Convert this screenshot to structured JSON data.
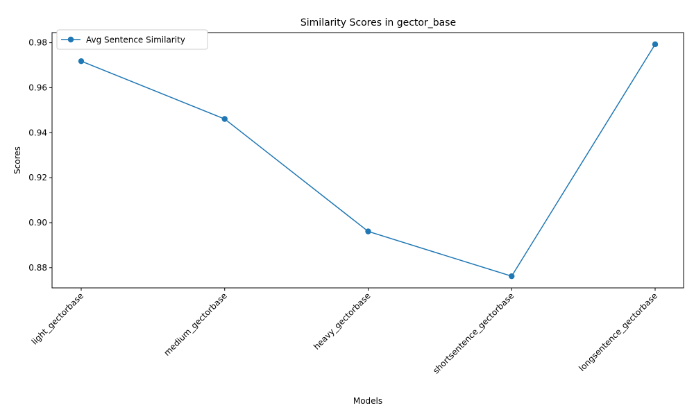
{
  "chart_data": {
    "type": "line",
    "title": "Similarity Scores in gector_base",
    "xlabel": "Models",
    "ylabel": "Scores",
    "categories": [
      "light_gectorbase",
      "medium_gectorbase",
      "heavy_gectorbase",
      "shortsentence_gectorbase",
      "longsentence_gectorbase"
    ],
    "series": [
      {
        "name": "Avg Sentence Similarity",
        "values": [
          0.9718,
          0.9461,
          0.8961,
          0.8762,
          0.9793
        ],
        "color": "#1f77b4",
        "marker": "circle"
      }
    ],
    "ylim": [
      0.871,
      0.9845
    ],
    "yticks": [
      0.88,
      0.9,
      0.92,
      0.94,
      0.96,
      0.98
    ],
    "ytick_labels": [
      "0.88",
      "0.90",
      "0.92",
      "0.94",
      "0.96",
      "0.98"
    ],
    "grid": false,
    "legend_position": "top-left"
  }
}
